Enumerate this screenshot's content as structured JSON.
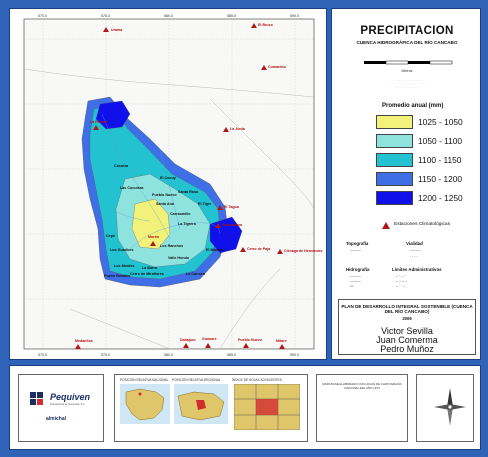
{
  "legend": {
    "title": "PRECIPITACION",
    "subtitle": "CUENCA HIDROGRÁFICA DEL RÍO CANCABO",
    "scale_unit": "Metros",
    "heading": "Promedio anual (mm)",
    "classes": [
      {
        "label": "1025 - 1050",
        "color": "#f2f27a"
      },
      {
        "label": "1050 - 1100",
        "color": "#8fe3df"
      },
      {
        "label": "1100 - 1150",
        "color": "#22c2d0"
      },
      {
        "label": "1150 - 1200",
        "color": "#3f6fe6"
      },
      {
        "label": "1200 - 1250",
        "color": "#1010ea"
      }
    ],
    "station_label": "Estaciones Climatológicas",
    "topografia": "Topografía",
    "vialidad": "Vialidad",
    "hidrografia": "Hidrografía",
    "limites": "Límites Administrativos"
  },
  "plan": {
    "title": "PLAN DE DESARROLLO INTEGRAL SOSTENIBLE (CUENCA DEL RÍO CANCABO)",
    "year": "2006",
    "authors": [
      "Victor Sevilla",
      "Juan Comerma",
      "Pedro Muñoz"
    ]
  },
  "map": {
    "x_ticks": [
      "570.0",
      "575.0",
      "580.0",
      "585.0",
      "590.0"
    ],
    "stations": [
      {
        "name": "Urama"
      },
      {
        "name": "El Bruco"
      },
      {
        "name": "Cumarebo"
      },
      {
        "name": "La Florida"
      },
      {
        "name": "La Junta"
      },
      {
        "name": "El Tagua"
      },
      {
        "name": "Guacamaya"
      },
      {
        "name": "Cerro de Paja"
      },
      {
        "name": "Ciénaga de Hernández"
      },
      {
        "name": "Morón"
      },
      {
        "name": "Medanitos"
      },
      {
        "name": "Mitare"
      },
      {
        "name": "Dabajuro"
      },
      {
        "name": "Pueblo Nuevo"
      },
      {
        "name": "Guanare"
      }
    ],
    "place_labels": [
      "Cocuiza",
      "Las Cocuizas",
      "Pueblo Nuevo",
      "Santa Ana",
      "Carraomillo",
      "El Tigre",
      "La Tigrera",
      "Santa Rosa",
      "El Cocuy",
      "Cepe",
      "Los Guaribes",
      "Los Ranchos",
      "Los Montes",
      "Cerro de Miraflores",
      "Pozón Rosales",
      "La Barra",
      "Valle Hondo",
      "El Mamón",
      "La Carmen"
    ]
  },
  "bottom": {
    "company": "Pequiven",
    "company_sub": "Petroquímica de Venezuela, S.A.",
    "partner": "almichal",
    "insets": [
      "POSICIÓN RELATIVA NACIONAL",
      "POSICIÓN RELATIVA REGIONAL",
      "ÍNDICE DE HOJAS ADYACENTES"
    ],
    "info": "MAPA BASE ELABORADO CON HOJAS DE CARTOGRAFÍA NACIONAL DEL AÑO 1973"
  },
  "colors": {
    "frame": "#2f63b8",
    "station": "#b01818"
  }
}
